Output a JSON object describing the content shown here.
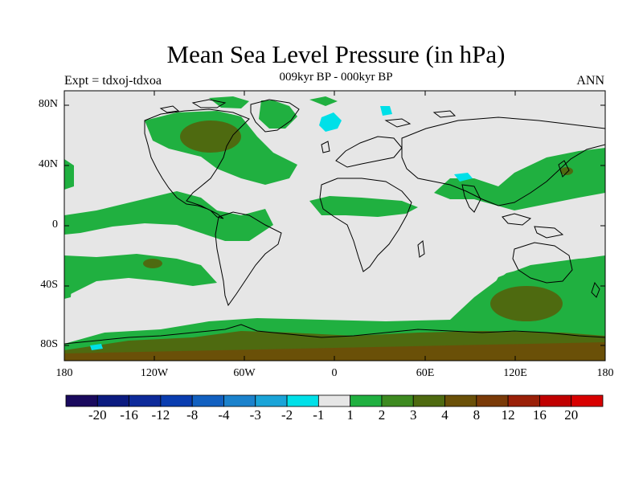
{
  "title": "Mean Sea Level Pressure (in hPa)",
  "subtitle_left": "Expt = tdxoj-tdxoa",
  "subtitle_center": "009kyr BP - 000kyr BP",
  "subtitle_right": "ANN",
  "lat_labels": [
    "80N",
    "40N",
    "0",
    "40S",
    "80S"
  ],
  "lon_labels": [
    "180",
    "120W",
    "60W",
    "0",
    "60E",
    "120E",
    "180"
  ],
  "colorbar": {
    "labels": [
      "-20",
      "-16",
      "-12",
      "-8",
      "-4",
      "-3",
      "-2",
      "-1",
      "1",
      "2",
      "3",
      "4",
      "8",
      "12",
      "16",
      "20"
    ],
    "colors": [
      "#1a0a5e",
      "#0b1b80",
      "#0d2a9a",
      "#0a3db0",
      "#1260c0",
      "#1b82cc",
      "#1aa4d8",
      "#00e0e8",
      "#e6e6e6",
      "#20b040",
      "#3d8a20",
      "#4e6a10",
      "#6a5008",
      "#7a3a08",
      "#9a2008",
      "#c00000",
      "#d80000"
    ]
  },
  "colors": {
    "land_outline": "#000000",
    "neutral": "#e6e6e6",
    "light_green": "#20b040",
    "mid_green": "#3d8a20",
    "olive": "#4e6a10",
    "brown": "#6a5008",
    "cyan": "#00e0e8"
  }
}
